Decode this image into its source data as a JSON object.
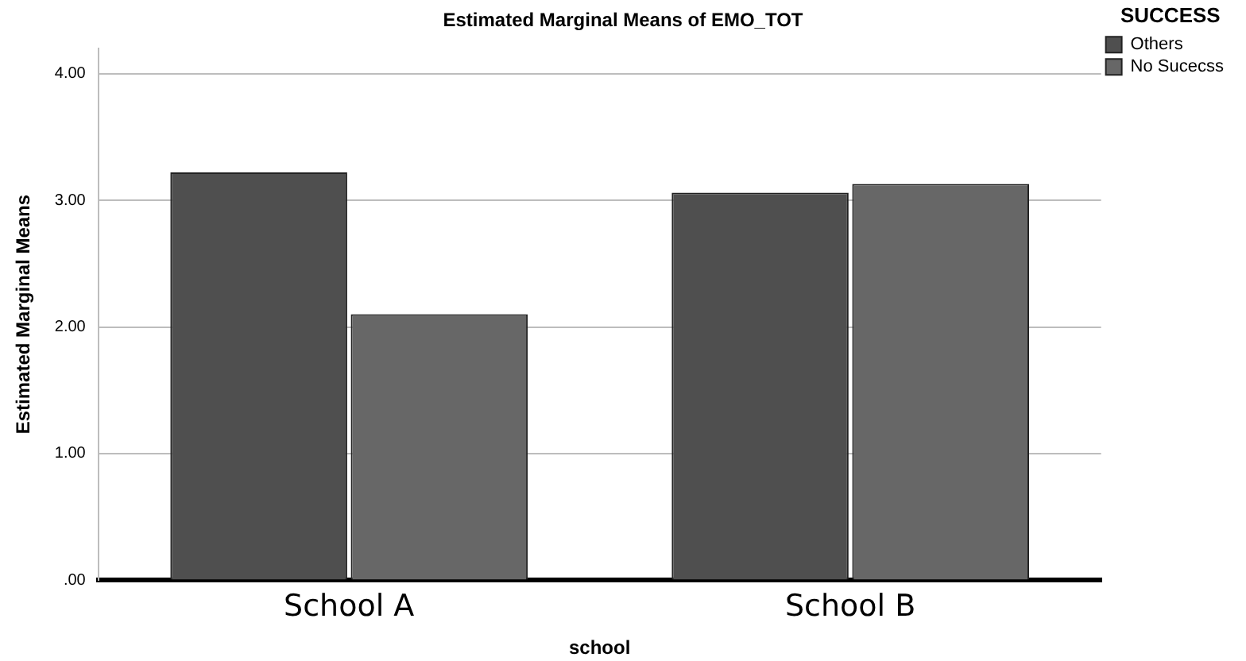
{
  "chart_data": {
    "type": "bar",
    "title": "Estimated Marginal Means of EMO_TOT",
    "xlabel": "school",
    "ylabel": "Estimated Marginal Means",
    "legend_title": "SUCCESS",
    "categories": [
      "School A",
      "School B"
    ],
    "series": [
      {
        "name": "Others",
        "color": "#4f4f4f",
        "values": [
          3.22,
          3.06
        ]
      },
      {
        "name": "No Sucecss",
        "color": "#676767",
        "values": [
          2.1,
          3.13
        ]
      }
    ],
    "ylim": [
      0,
      4.2
    ],
    "yticks": [
      {
        "value": 0,
        "label": ".00"
      },
      {
        "value": 1,
        "label": "1.00"
      },
      {
        "value": 2,
        "label": "2.00"
      },
      {
        "value": 3,
        "label": "3.00"
      },
      {
        "value": 4,
        "label": "4.00"
      }
    ],
    "grid": "y",
    "legend": "top right"
  }
}
